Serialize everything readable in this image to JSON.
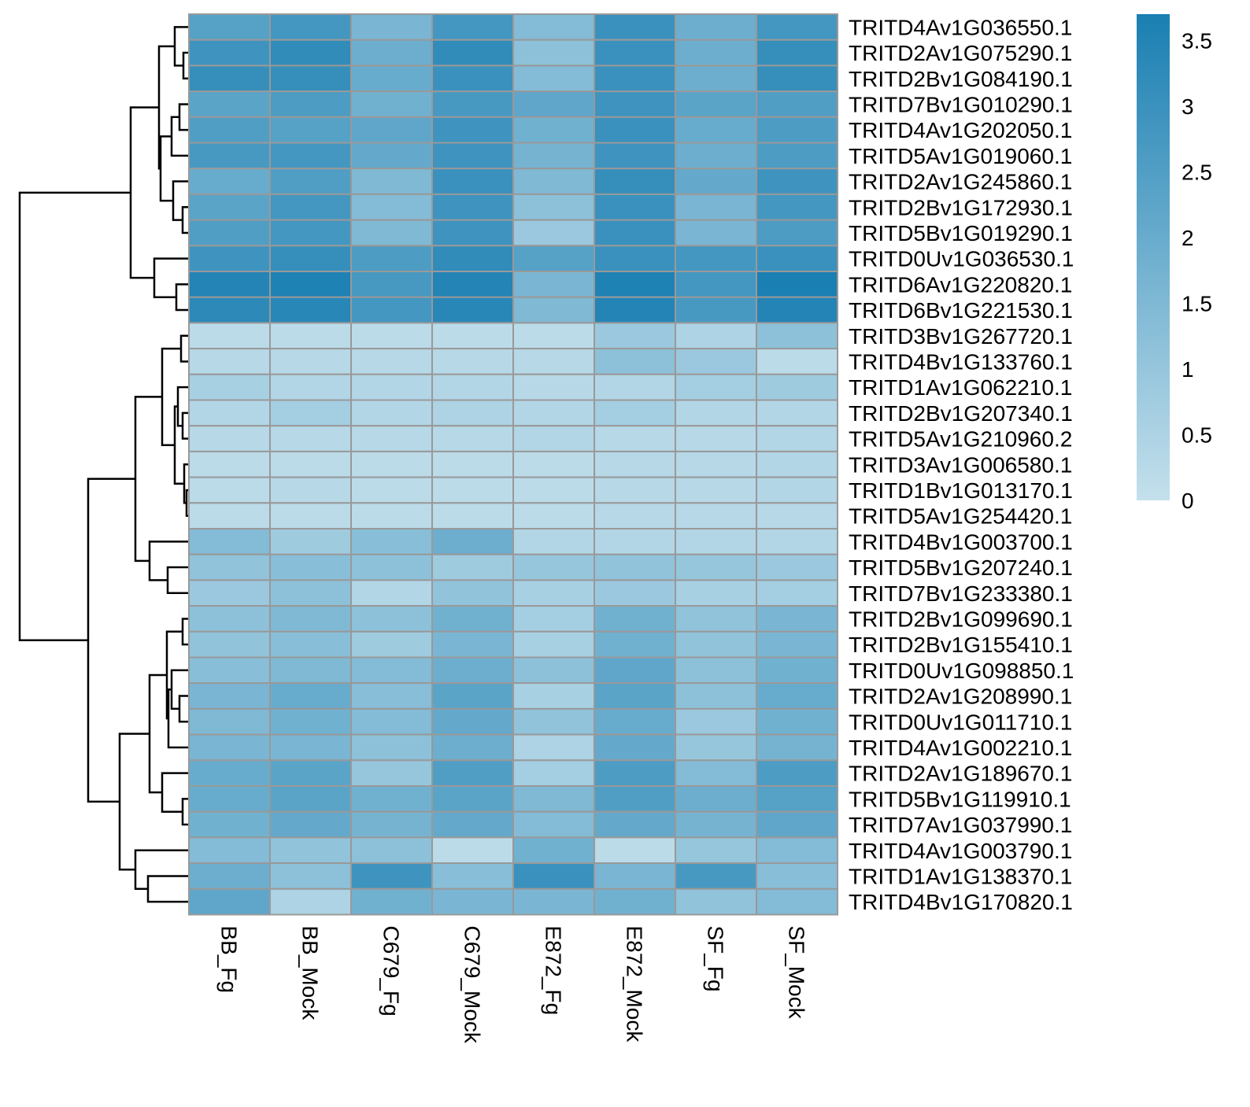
{
  "chart_data": {
    "type": "heatmap",
    "columns": [
      "BB_Fg",
      "BB_Mock",
      "C679_Fg",
      "C679_Mock",
      "E872_Fg",
      "E872_Mock",
      "SF_Fg",
      "SF_Mock"
    ],
    "rows": [
      "TRITD4Av1G036550.1",
      "TRITD2Av1G075290.1",
      "TRITD2Bv1G084190.1",
      "TRITD7Bv1G010290.1",
      "TRITD4Av1G202050.1",
      "TRITD5Av1G019060.1",
      "TRITD2Av1G245860.1",
      "TRITD2Bv1G172930.1",
      "TRITD5Bv1G019290.1",
      "TRITD0Uv1G036530.1",
      "TRITD6Av1G220820.1",
      "TRITD6Bv1G221530.1",
      "TRITD3Bv1G267720.1",
      "TRITD4Bv1G133760.1",
      "TRITD1Av1G062210.1",
      "TRITD2Bv1G207340.1",
      "TRITD5Av1G210960.2",
      "TRITD3Av1G006580.1",
      "TRITD1Bv1G013170.1",
      "TRITD5Av1G254420.1",
      "TRITD4Bv1G003700.1",
      "TRITD5Bv1G207240.1",
      "TRITD7Bv1G233380.1",
      "TRITD2Bv1G099690.1",
      "TRITD2Bv1G155410.1",
      "TRITD0Uv1G098850.1",
      "TRITD2Av1G208990.1",
      "TRITD0Uv1G011710.1",
      "TRITD4Av1G002210.1",
      "TRITD2Av1G189670.1",
      "TRITD5Bv1G119910.1",
      "TRITD7Av1G037990.1",
      "TRITD4Av1G003790.1",
      "TRITD1Av1G138370.1",
      "TRITD4Bv1G170820.1"
    ],
    "values": [
      [
        2.4,
        2.8,
        1.6,
        2.8,
        1.4,
        3.0,
        1.9,
        2.8
      ],
      [
        2.9,
        3.2,
        1.9,
        3.2,
        1.2,
        3.0,
        1.9,
        3.1
      ],
      [
        3.1,
        3.1,
        2.0,
        3.0,
        1.4,
        3.0,
        1.9,
        3.1
      ],
      [
        2.3,
        2.6,
        1.8,
        2.7,
        2.2,
        2.9,
        2.3,
        2.5
      ],
      [
        2.5,
        2.4,
        2.2,
        2.9,
        1.8,
        3.0,
        2.0,
        2.6
      ],
      [
        2.7,
        2.8,
        2.1,
        2.9,
        1.7,
        2.9,
        1.9,
        2.6
      ],
      [
        2.0,
        2.5,
        1.5,
        3.0,
        1.5,
        3.1,
        2.1,
        2.9
      ],
      [
        2.3,
        2.8,
        1.4,
        2.9,
        1.2,
        3.0,
        1.6,
        2.8
      ],
      [
        2.5,
        2.8,
        1.5,
        2.9,
        0.9,
        3.0,
        1.6,
        2.6
      ],
      [
        2.9,
        3.1,
        2.6,
        3.2,
        2.4,
        3.0,
        2.8,
        3.0
      ],
      [
        3.5,
        3.6,
        2.7,
        3.5,
        1.6,
        3.6,
        2.8,
        3.7
      ],
      [
        3.3,
        3.4,
        2.8,
        3.4,
        1.5,
        3.5,
        2.7,
        3.5
      ],
      [
        0.2,
        0.2,
        0.2,
        0.2,
        0.2,
        0.9,
        0.5,
        1.2
      ],
      [
        0.3,
        0.3,
        0.3,
        0.3,
        0.3,
        1.2,
        0.9,
        0.2
      ],
      [
        0.6,
        0.4,
        0.4,
        0.4,
        0.3,
        0.4,
        0.7,
        0.8
      ],
      [
        0.4,
        0.7,
        0.4,
        0.5,
        0.4,
        0.7,
        0.4,
        0.4
      ],
      [
        0.3,
        0.3,
        0.3,
        0.3,
        0.4,
        0.3,
        0.3,
        0.4
      ],
      [
        0.2,
        0.2,
        0.2,
        0.2,
        0.2,
        0.3,
        0.3,
        0.4
      ],
      [
        0.2,
        0.3,
        0.2,
        0.2,
        0.2,
        0.3,
        0.3,
        0.4
      ],
      [
        0.2,
        0.2,
        0.2,
        0.2,
        0.2,
        0.3,
        0.3,
        0.3
      ],
      [
        1.4,
        0.8,
        1.3,
        1.9,
        0.4,
        0.4,
        0.4,
        0.4
      ],
      [
        1.1,
        1.3,
        1.2,
        0.8,
        1.0,
        1.1,
        1.0,
        0.9
      ],
      [
        0.9,
        1.2,
        0.4,
        1.1,
        0.6,
        0.9,
        0.6,
        0.7
      ],
      [
        1.2,
        1.5,
        1.2,
        1.8,
        0.7,
        1.8,
        1.1,
        1.6
      ],
      [
        1.1,
        1.3,
        0.8,
        1.6,
        0.6,
        1.8,
        1.1,
        1.6
      ],
      [
        1.3,
        1.5,
        1.4,
        1.9,
        1.2,
        2.2,
        1.2,
        1.8
      ],
      [
        1.6,
        2.0,
        1.3,
        2.3,
        0.6,
        2.3,
        1.2,
        2.0
      ],
      [
        1.5,
        1.8,
        1.4,
        2.1,
        1.1,
        2.0,
        0.9,
        1.8
      ],
      [
        1.6,
        1.6,
        1.2,
        1.9,
        0.5,
        2.1,
        1.0,
        1.7
      ],
      [
        2.0,
        2.3,
        1.0,
        2.5,
        0.7,
        2.6,
        1.4,
        2.6
      ],
      [
        2.0,
        2.3,
        1.8,
        2.3,
        1.5,
        2.5,
        1.9,
        2.4
      ],
      [
        1.8,
        2.1,
        1.7,
        2.1,
        1.4,
        2.1,
        1.7,
        2.2
      ],
      [
        1.4,
        1.1,
        1.2,
        0.2,
        1.8,
        0.2,
        1.0,
        1.4
      ],
      [
        1.9,
        1.2,
        2.9,
        1.3,
        3.0,
        1.6,
        2.7,
        1.3
      ],
      [
        2.2,
        0.5,
        1.8,
        1.6,
        1.6,
        1.8,
        1.1,
        1.4
      ]
    ],
    "legend": {
      "min": 0,
      "max": 3.7,
      "ticks": [
        "3.5",
        "3",
        "2.5",
        "2",
        "1.5",
        "1",
        "0.5",
        "0"
      ],
      "low_color": "#c4e0ec",
      "high_color": "#1a7fb2"
    },
    "cell_border_color": "#999999"
  }
}
